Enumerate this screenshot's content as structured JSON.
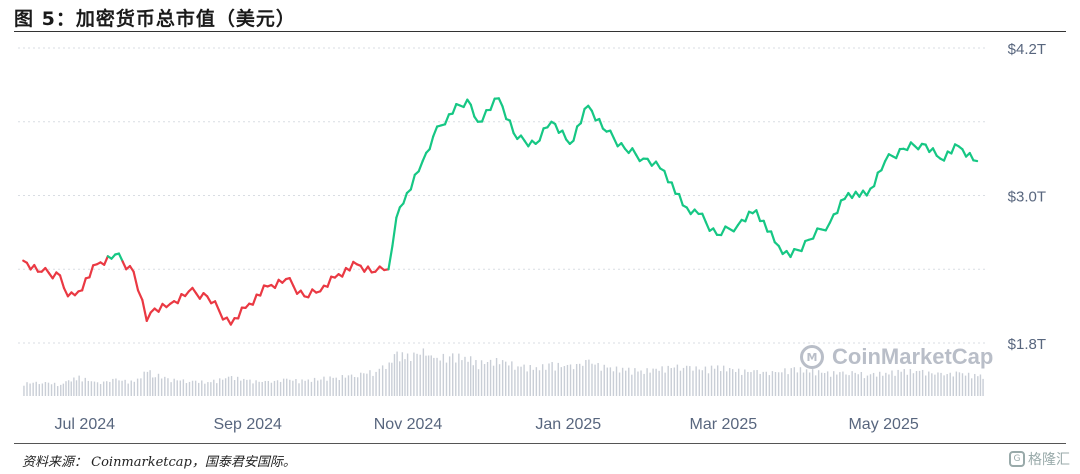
{
  "figure": {
    "title": "图 5：加密货币总市值（美元）",
    "source": "资料来源： Coinmarketcap，国泰君安国际。",
    "watermark": "CoinMarketCap",
    "corner_logo": "格隆汇",
    "colors": {
      "up": "#16c784",
      "down": "#ea3943",
      "grid": "#d9dde3",
      "volume": "#c9ced6",
      "axis_text": "#58667e"
    }
  },
  "chart_data": {
    "type": "line",
    "title": "",
    "xlabel": "",
    "ylabel": "",
    "x_ticks": [
      "Jul 2024",
      "Sep 2024",
      "Nov 2024",
      "Jan 2025",
      "Mar 2025",
      "May 2025"
    ],
    "y_ticks": [
      "$4.2T",
      "$3.0T",
      "$1.8T"
    ],
    "y_tick_values": [
      4.2,
      3.0,
      1.8
    ],
    "ylim": [
      1.8,
      4.2
    ],
    "grid": true,
    "baseline": 2.48,
    "color_rule": "green above baseline, red below",
    "series": [
      {
        "x": [
          "2024-06-19",
          "2024-06-26",
          "2024-07-03",
          "2024-07-06",
          "2024-07-10",
          "2024-07-17",
          "2024-07-24",
          "2024-07-31",
          "2024-08-05",
          "2024-08-08",
          "2024-08-14",
          "2024-08-21",
          "2024-08-28",
          "2024-09-06",
          "2024-09-13",
          "2024-09-20",
          "2024-09-27",
          "2024-10-04",
          "2024-10-10",
          "2024-10-17",
          "2024-10-24",
          "2024-10-31",
          "2024-11-05",
          "2024-11-08",
          "2024-11-12",
          "2024-11-18",
          "2024-11-22",
          "2024-11-28",
          "2024-12-05",
          "2024-12-09",
          "2024-12-17",
          "2024-12-24",
          "2024-12-31",
          "2025-01-06",
          "2025-01-13",
          "2025-01-20",
          "2025-01-27",
          "2025-02-03",
          "2025-02-10",
          "2025-02-18",
          "2025-02-25",
          "2025-03-03",
          "2025-03-10",
          "2025-03-18",
          "2025-03-25",
          "2025-04-01",
          "2025-04-07",
          "2025-04-14",
          "2025-04-22",
          "2025-04-29",
          "2025-05-06",
          "2025-05-13",
          "2025-05-20",
          "2025-05-27",
          "2025-06-03",
          "2025-06-10",
          "2025-06-17"
        ],
        "values": [
          2.47,
          2.38,
          2.35,
          2.18,
          2.22,
          2.44,
          2.52,
          2.38,
          1.98,
          2.08,
          2.12,
          2.22,
          2.18,
          1.95,
          2.12,
          2.26,
          2.32,
          2.18,
          2.22,
          2.36,
          2.44,
          2.38,
          2.4,
          2.82,
          3.02,
          3.28,
          3.48,
          3.66,
          3.78,
          3.6,
          3.79,
          3.46,
          3.42,
          3.6,
          3.42,
          3.73,
          3.52,
          3.38,
          3.3,
          3.2,
          2.92,
          2.85,
          2.68,
          2.76,
          2.88,
          2.62,
          2.5,
          2.64,
          2.78,
          3.02,
          3.0,
          3.28,
          3.38,
          3.42,
          3.3,
          3.4,
          3.28
        ]
      }
    ],
    "volume": [
      20,
      22,
      18,
      24,
      30,
      20,
      26,
      22,
      40,
      34,
      26,
      24,
      22,
      30,
      24,
      22,
      26,
      24,
      28,
      30,
      34,
      40,
      52,
      66,
      62,
      70,
      58,
      64,
      60,
      52,
      56,
      48,
      44,
      50,
      46,
      54,
      44,
      42,
      40,
      44,
      48,
      42,
      46,
      40,
      38,
      36,
      44,
      40,
      36,
      38,
      34,
      36,
      40,
      38,
      34,
      36,
      32
    ]
  }
}
